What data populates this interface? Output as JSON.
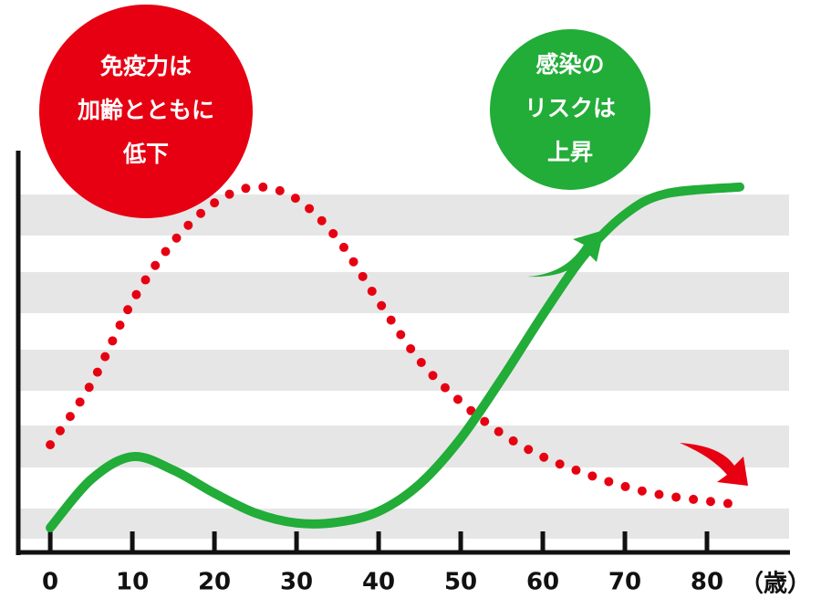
{
  "chart_data": {
    "type": "line",
    "xlim": [
      -3.9,
      90
    ],
    "ylim": [
      0,
      100
    ],
    "xticks": [
      0,
      10,
      20,
      30,
      40,
      50,
      60,
      70,
      80
    ],
    "x_unit": "（歳）",
    "series": [
      {
        "color": "#e60012",
        "style": "dotted",
        "x": [
          0,
          5,
          10,
          15,
          20,
          25,
          30,
          35,
          40,
          45,
          50,
          55,
          60,
          65,
          70,
          75,
          83
        ],
        "values": [
          27.1,
          42.5,
          63.2,
          78.2,
          88.0,
          92.0,
          89.0,
          78.9,
          63.2,
          48.3,
          37.9,
          29.9,
          24.1,
          20.0,
          16.6,
          14.3,
          12.2
        ]
      },
      {
        "color": "#22ac38",
        "style": "solid",
        "x": [
          0,
          5,
          10,
          15,
          20,
          25,
          30,
          35,
          40,
          45,
          50,
          55,
          60,
          65,
          70,
          75,
          84
        ],
        "values": [
          6.2,
          18.4,
          24.1,
          20.7,
          14.9,
          9.9,
          7.4,
          7.6,
          10.3,
          17.2,
          28.7,
          43.7,
          59.8,
          74.7,
          85.1,
          90.3,
          92.0
        ]
      }
    ],
    "annotations": [
      {
        "lines": [
          "免疫力は",
          "加齢とともに",
          "低下"
        ],
        "color": "#e60012"
      },
      {
        "lines": [
          "感染の",
          "リスクは",
          "上昇"
        ],
        "color": "#22ac38"
      }
    ]
  }
}
